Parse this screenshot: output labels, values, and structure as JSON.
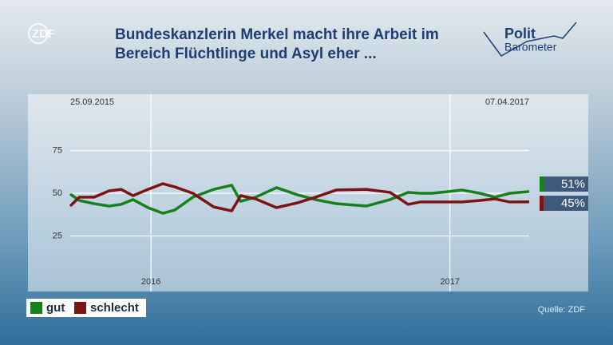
{
  "chart_data": {
    "type": "line",
    "logo": "ZDF",
    "brand": [
      "Polit",
      "Barometer"
    ],
    "title_lines": [
      "Bundeskanzlerin Merkel macht ihre Arbeit im",
      "Bereich Flüchtlinge und Asyl eher ..."
    ],
    "start_label": "25.09.2015",
    "end_label": "07.04.2017",
    "source": "Quelle: ZDF",
    "x": [
      2015.73,
      2015.76,
      2015.81,
      2015.86,
      2015.9,
      2015.94,
      2015.99,
      2016.04,
      2016.08,
      2016.14,
      2016.21,
      2016.27,
      2016.3,
      2016.35,
      2016.42,
      2016.49,
      2016.55,
      2016.62,
      2016.72,
      2016.8,
      2016.86,
      2016.9,
      2016.94,
      2016.99,
      2017.04,
      2017.1,
      2017.15,
      2017.2,
      2017.265
    ],
    "xlim": [
      2015.73,
      2017.265
    ],
    "xticks": [
      2016,
      2017
    ],
    "ylim": [
      0,
      100
    ],
    "yticks": [
      25,
      50,
      75
    ],
    "grid": true,
    "series": [
      {
        "name": "gut",
        "color": "#17801c",
        "end_label": "51%",
        "values": [
          49.5,
          45.8,
          43.9,
          42.5,
          43.5,
          46.3,
          41.6,
          38.3,
          40.2,
          47.7,
          52.3,
          54.7,
          45.3,
          47.7,
          53.3,
          49.1,
          46.3,
          43.9,
          42.5,
          46.3,
          50.5,
          50,
          50,
          50.9,
          51.9,
          50,
          47.7,
          50,
          51
        ]
      },
      {
        "name": "schlecht",
        "color": "#7d1414",
        "end_label": "45%",
        "values": [
          42.5,
          47.7,
          47.7,
          51.4,
          52.3,
          48.6,
          52.3,
          55.6,
          53.7,
          50,
          42,
          39.7,
          48.6,
          46.7,
          41.6,
          44.4,
          47.7,
          51.9,
          52.3,
          50.5,
          43.5,
          44.9,
          44.9,
          44.9,
          44.9,
          45.8,
          46.7,
          44.9,
          45
        ]
      }
    ]
  }
}
